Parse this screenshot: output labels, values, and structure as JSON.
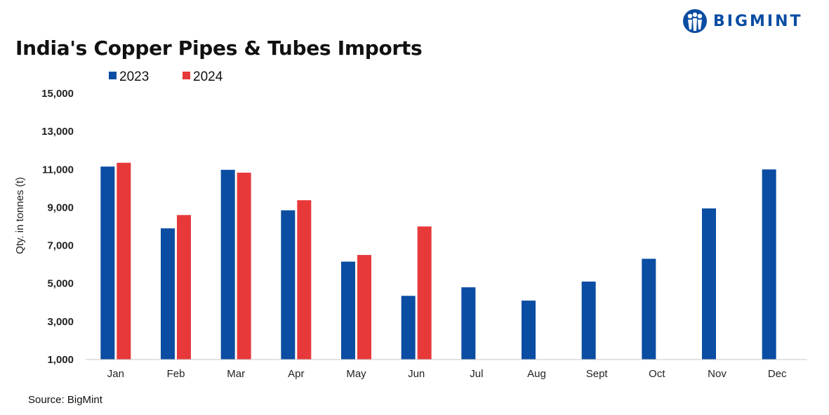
{
  "logo": {
    "text": "BIGMINT",
    "color": "#0a4da2"
  },
  "source": "Source: BigMint",
  "chart_data": {
    "type": "bar",
    "title": "India's Copper Pipes & Tubes Imports",
    "xlabel": "",
    "ylabel": "Qty. in tonnes (t)",
    "ylim": [
      1000,
      15000
    ],
    "yticks": [
      1000,
      3000,
      5000,
      7000,
      9000,
      11000,
      13000,
      15000
    ],
    "ytick_labels": [
      "1,000",
      "3,000",
      "5,000",
      "7,000",
      "9,000",
      "11,000",
      "13,000",
      "15,000"
    ],
    "grid": false,
    "legend_position": "top-left",
    "categories": [
      "Jan",
      "Feb",
      "Mar",
      "Apr",
      "May",
      "Jun",
      "Jul",
      "Aug",
      "Sept",
      "Oct",
      "Nov",
      "Dec"
    ],
    "series": [
      {
        "name": "2023",
        "color": "#0a4da2",
        "values": [
          11150,
          7900,
          10980,
          8850,
          6150,
          4350,
          4800,
          4100,
          5100,
          6300,
          8950,
          11000
        ]
      },
      {
        "name": "2024",
        "color": "#e8393a",
        "values": [
          11350,
          8600,
          10830,
          9380,
          6500,
          8000,
          null,
          null,
          null,
          null,
          null,
          null
        ]
      }
    ]
  }
}
